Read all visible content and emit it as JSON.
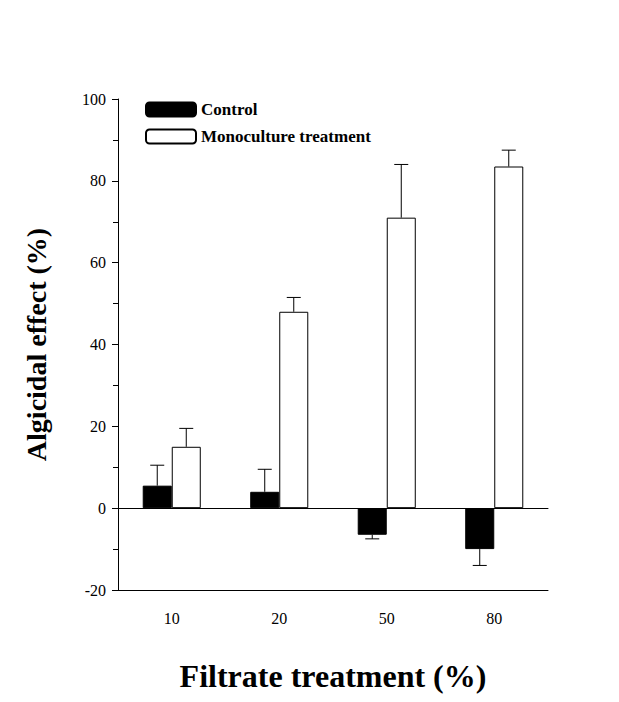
{
  "chart_data": {
    "type": "bar",
    "x_label": "Filtrate treatment (%)",
    "y_label": "Algicidal effect (%)",
    "categories": [
      "10",
      "20",
      "50",
      "80"
    ],
    "series": [
      {
        "name": "Control",
        "color": "#000000",
        "values": [
          5.5,
          4,
          -6.5,
          -10
        ],
        "errors": [
          5,
          5.5,
          1,
          4
        ]
      },
      {
        "name": "Monoculture treatment",
        "color": "#ffffff",
        "values": [
          15,
          48,
          71,
          83.5
        ],
        "errors": [
          4.5,
          3.5,
          13,
          4
        ]
      }
    ],
    "ylim": [
      -20,
      100
    ],
    "yticks": [
      -20,
      0,
      20,
      40,
      60,
      80,
      100
    ],
    "grid": false,
    "legend": "upper left"
  }
}
